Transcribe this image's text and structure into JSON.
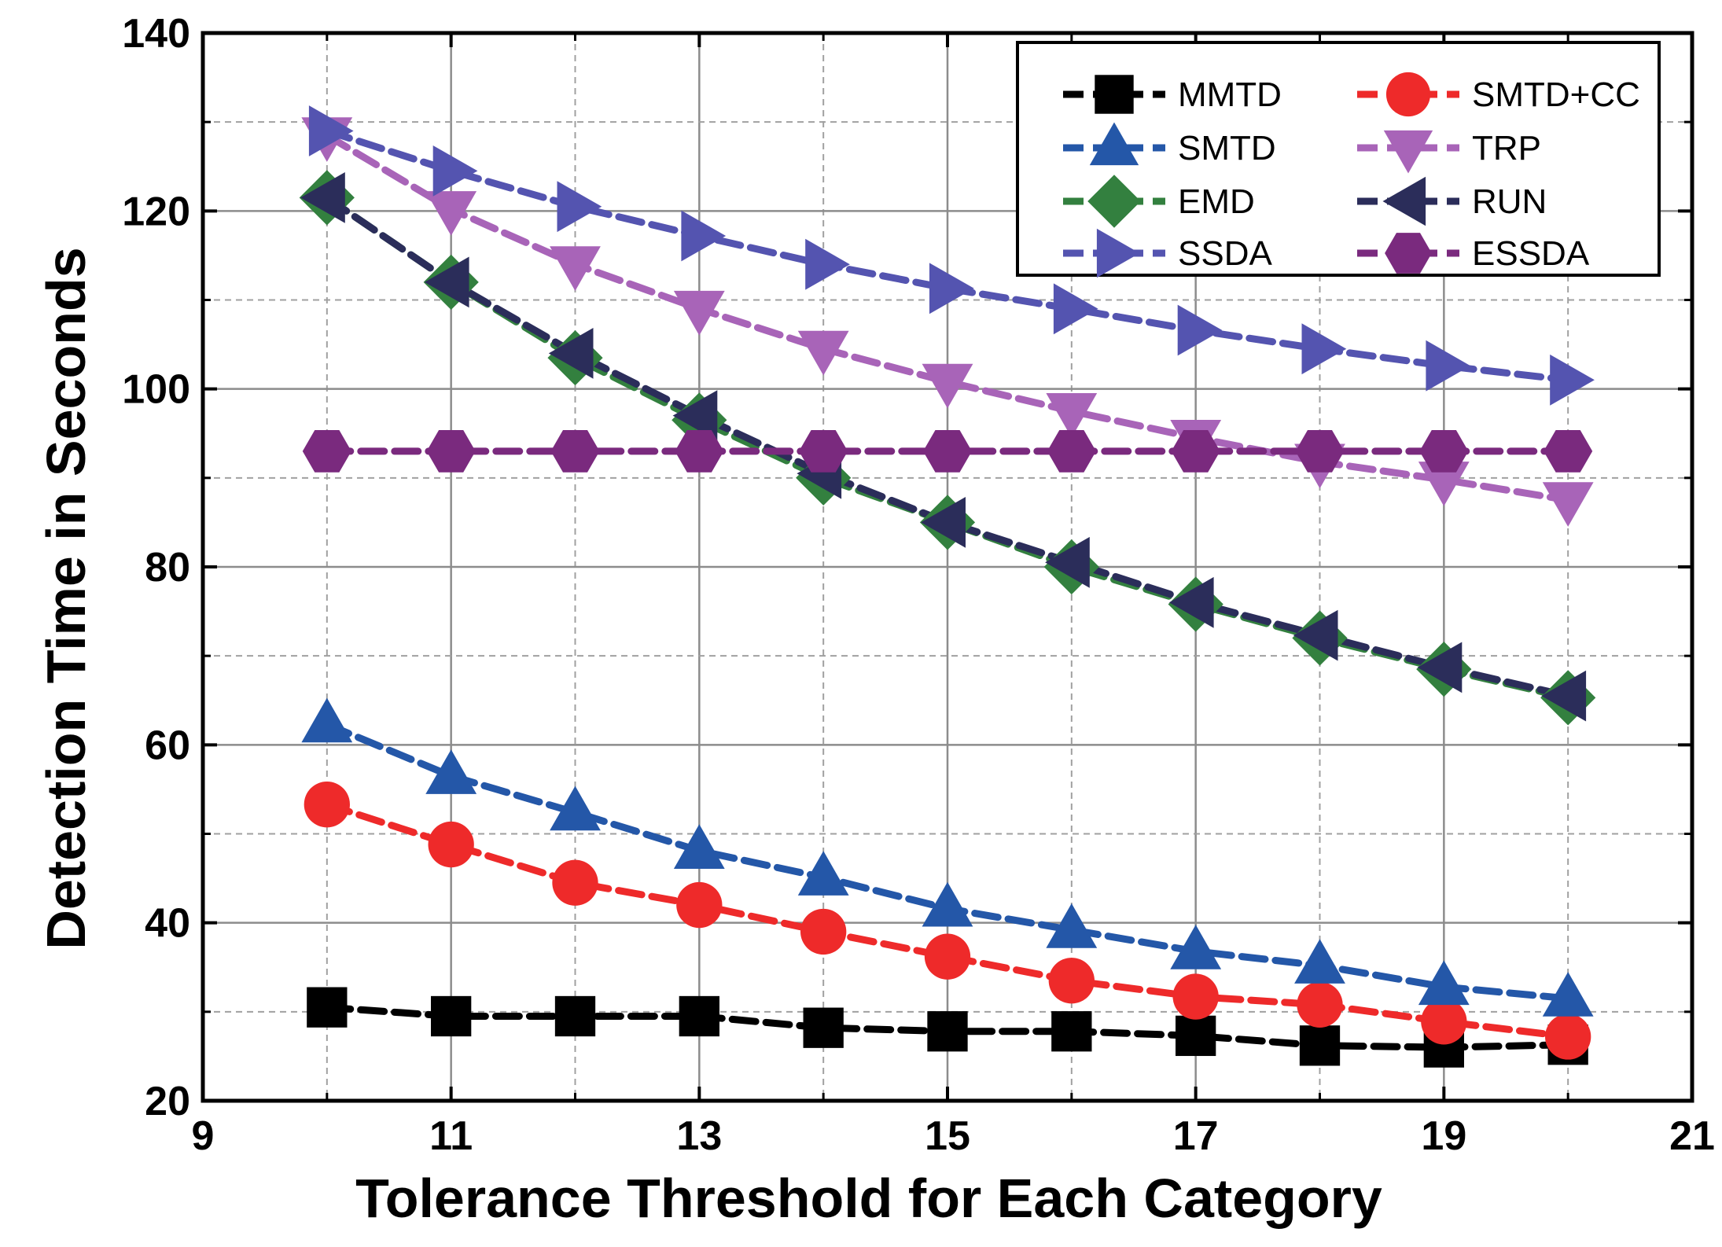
{
  "chart_data": {
    "type": "line",
    "xlabel": "Tolerance Threshold for Each Category",
    "ylabel": "Detection Time in Seconds",
    "xlim": [
      9,
      21
    ],
    "ylim": [
      20,
      140
    ],
    "x_ticks": [
      9,
      11,
      13,
      15,
      17,
      19,
      21
    ],
    "y_ticks": [
      20,
      40,
      60,
      80,
      100,
      120,
      140
    ],
    "grid": true,
    "legend_position": "top-right",
    "x": [
      10,
      11,
      12,
      13,
      14,
      15,
      16,
      17,
      18,
      19,
      20
    ],
    "series": [
      {
        "name": "MMTD",
        "color": "#000000",
        "marker": "square",
        "values": [
          30.5,
          29.5,
          29.5,
          29.5,
          28.2,
          27.8,
          27.8,
          27.3,
          26.2,
          26.0,
          26.3
        ]
      },
      {
        "name": "SMTD+CC",
        "color": "#ee2a2a",
        "marker": "circle",
        "values": [
          53.3,
          48.8,
          44.5,
          42.0,
          39.0,
          36.2,
          33.5,
          31.7,
          30.8,
          28.9,
          27.2
        ]
      },
      {
        "name": "SMTD",
        "color": "#2457a8",
        "marker": "triangle-up",
        "values": [
          62.3,
          56.5,
          52.4,
          48.1,
          45.1,
          41.6,
          39.2,
          36.8,
          35.2,
          32.8,
          31.5
        ]
      },
      {
        "name": "TRP",
        "color": "#a864b8",
        "marker": "triangle-down",
        "values": [
          128.5,
          120.2,
          114.0,
          109.0,
          104.5,
          100.8,
          97.5,
          94.5,
          91.8,
          89.8,
          87.5
        ]
      },
      {
        "name": "EMD",
        "color": "#33803f",
        "marker": "diamond",
        "values": [
          121.5,
          112.0,
          103.5,
          96.5,
          90.0,
          85.0,
          80.0,
          75.8,
          72.0,
          68.5,
          65.3
        ]
      },
      {
        "name": "RUN",
        "color": "#2b2d5a",
        "marker": "triangle-left",
        "values": [
          121.5,
          112.0,
          104.0,
          97.0,
          90.5,
          85.0,
          80.5,
          76.0,
          72.3,
          68.7,
          65.5
        ]
      },
      {
        "name": "SSDA",
        "color": "#5454b0",
        "marker": "triangle-right",
        "values": [
          129.0,
          124.5,
          120.5,
          117.2,
          114.0,
          111.3,
          109.0,
          106.6,
          104.5,
          102.6,
          101.0
        ]
      },
      {
        "name": "ESSDA",
        "color": "#7a2a7e",
        "marker": "hexagon",
        "values": [
          93.0,
          93.0,
          93.0,
          93.0,
          93.0,
          93.0,
          93.0,
          93.0,
          93.0,
          93.0,
          93.0
        ]
      }
    ]
  }
}
